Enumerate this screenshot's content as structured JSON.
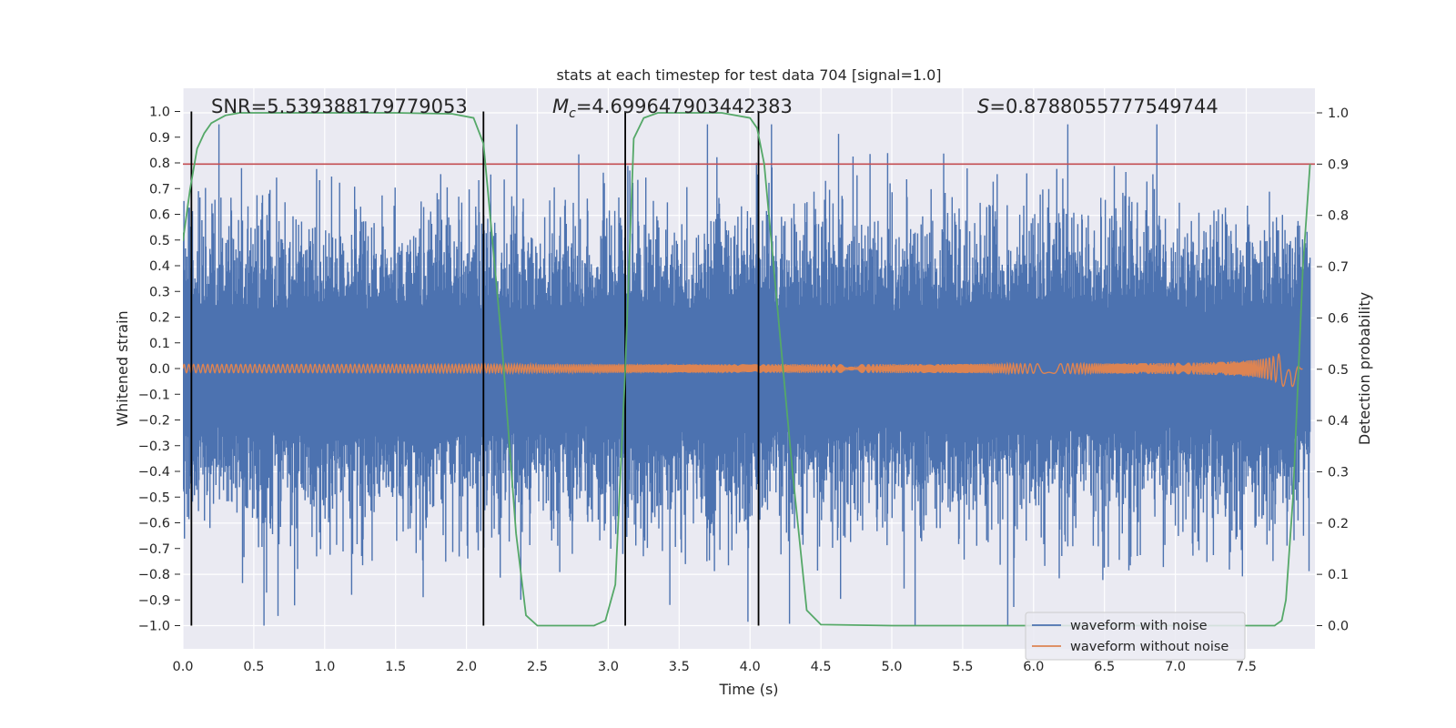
{
  "chart_data": {
    "type": "line",
    "title": "stats at each timestep for test data 704 [signal=1.0]",
    "xlabel": "Time (s)",
    "ylabel": "Whitened strain",
    "y2label": "Detection probability",
    "xlim": [
      0.0,
      8.0
    ],
    "ylim": [
      -1.1,
      1.1
    ],
    "y2lim": [
      -0.05,
      1.03
    ],
    "grid": true,
    "legend_position": "lower right",
    "xticks": [
      "0.0",
      "0.5",
      "1.0",
      "1.5",
      "2.0",
      "2.5",
      "3.0",
      "3.5",
      "4.0",
      "4.5",
      "5.0",
      "5.5",
      "6.0",
      "6.5",
      "7.0",
      "7.5"
    ],
    "yticks": [
      "−1.0",
      "−0.9",
      "−0.8",
      "−0.7",
      "−0.6",
      "−0.5",
      "−0.4",
      "−0.3",
      "−0.2",
      "−0.1",
      "0.0",
      "0.1",
      "0.2",
      "0.3",
      "0.4",
      "0.5",
      "0.6",
      "0.7",
      "0.8",
      "0.9",
      "1.0"
    ],
    "y2ticks": [
      "0.0",
      "0.1",
      "0.2",
      "0.3",
      "0.4",
      "0.5",
      "0.6",
      "0.7",
      "0.8",
      "0.9",
      "1.0"
    ],
    "annotations": {
      "snr": "SNR=5.539388179779053",
      "mc_prefix": "M",
      "mc_sub": "c",
      "mc_value": "=4.699647903442383",
      "s_prefix": "S",
      "s_value": "=0.8788055777549744"
    },
    "threshold_line": {
      "y2": 0.9,
      "color": "#c44e52"
    },
    "boundary_lines_x": [
      0.06,
      2.12,
      3.12,
      4.06
    ],
    "series": [
      {
        "name": "waveform with noise",
        "color": "#4c72b0",
        "description_envelope": {
          "typical_amplitude": 0.45,
          "max_positive": 0.95,
          "max_negative": -1.0
        }
      },
      {
        "name": "waveform without noise",
        "color": "#dd8452",
        "chirp": {
          "start_amplitude": 0.015,
          "peak_amplitude": 0.16,
          "merger_time": 7.82
        }
      },
      {
        "name": "detection probability",
        "color": "#55a868",
        "axis": "right",
        "x": [
          0.0,
          0.05,
          0.1,
          0.15,
          0.2,
          0.3,
          0.4,
          0.6,
          1.0,
          1.5,
          1.9,
          2.05,
          2.12,
          2.15,
          2.25,
          2.35,
          2.42,
          2.5,
          2.7,
          2.9,
          2.98,
          3.05,
          3.12,
          3.18,
          3.25,
          3.35,
          3.5,
          3.8,
          4.0,
          4.05,
          4.1,
          4.15,
          4.3,
          4.4,
          4.5,
          5.0,
          6.0,
          7.0,
          7.5,
          7.7,
          7.75,
          7.78,
          7.83,
          7.9,
          7.95
        ],
        "y": [
          0.75,
          0.85,
          0.93,
          0.96,
          0.98,
          0.995,
          1.0,
          1.0,
          1.0,
          1.0,
          0.998,
          0.99,
          0.94,
          0.85,
          0.55,
          0.18,
          0.02,
          0.0,
          0.0,
          0.0,
          0.01,
          0.08,
          0.5,
          0.95,
          0.99,
          1.0,
          1.0,
          1.0,
          0.99,
          0.97,
          0.9,
          0.75,
          0.3,
          0.03,
          0.002,
          0.0,
          0.0,
          0.0,
          0.0,
          0.0,
          0.01,
          0.05,
          0.25,
          0.7,
          0.9
        ]
      }
    ]
  }
}
